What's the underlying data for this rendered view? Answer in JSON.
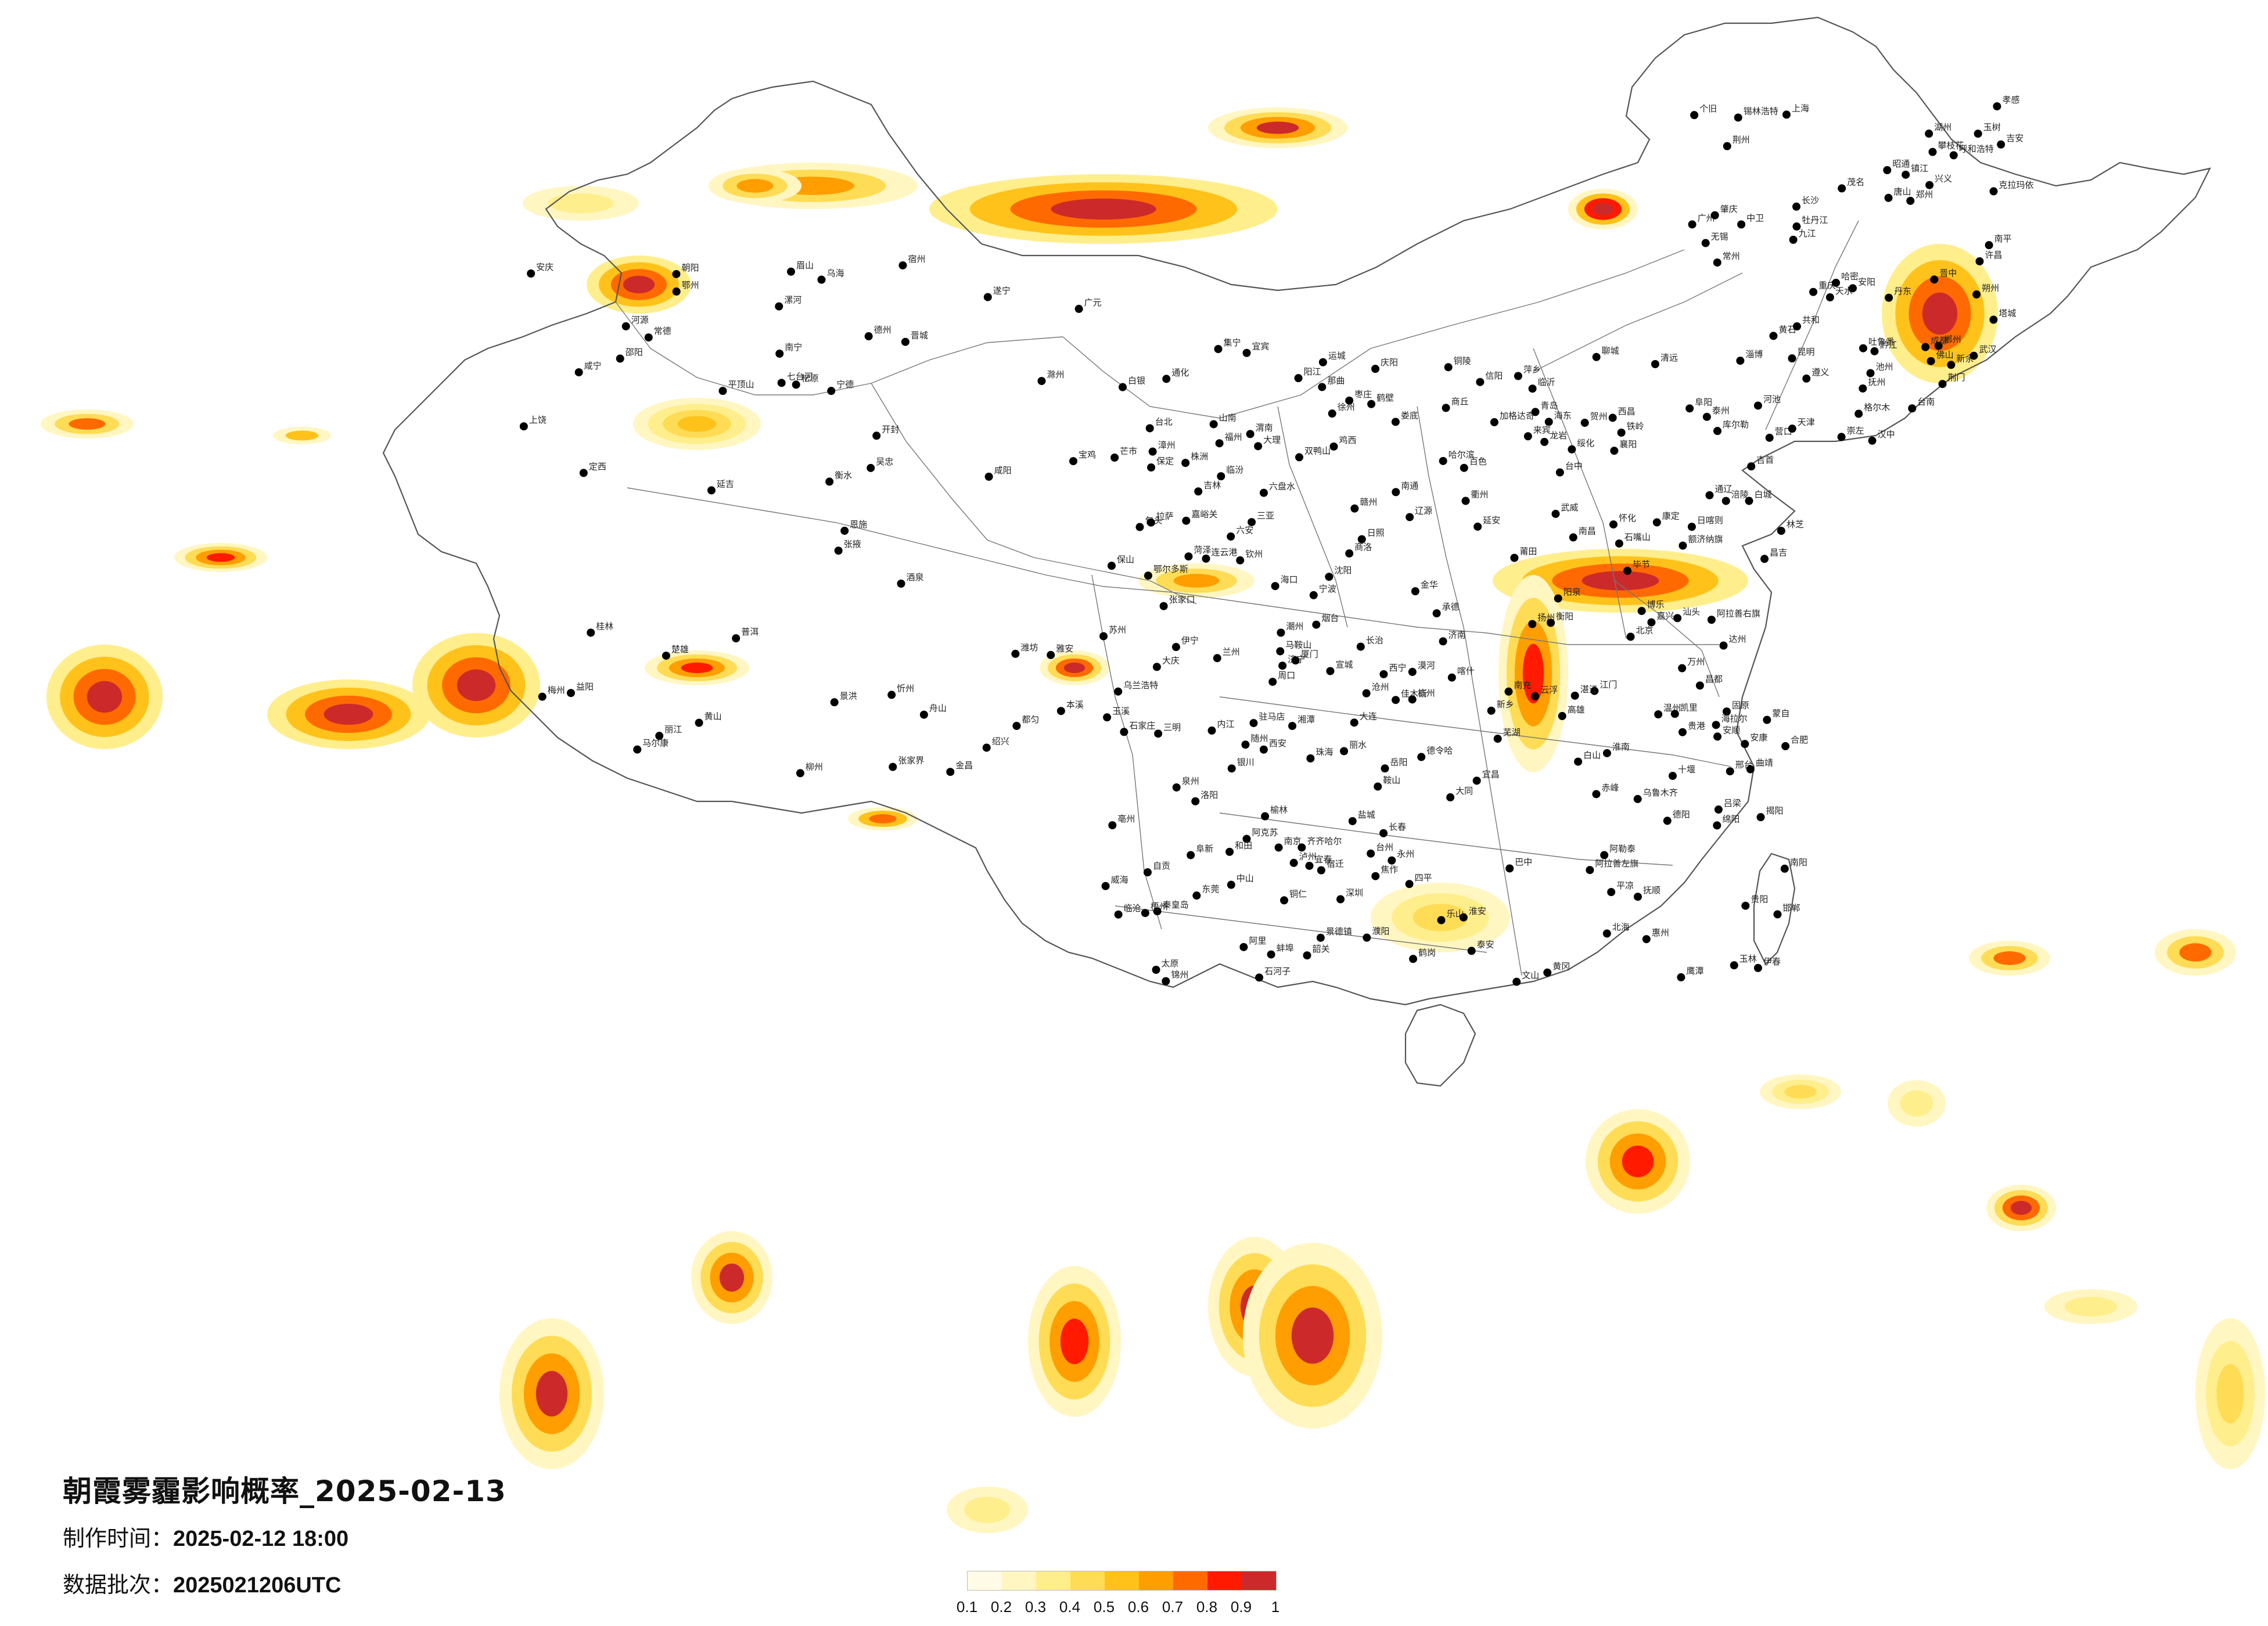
{
  "title": "朝霞雾霾影响概率_2025-02-13",
  "meta": {
    "made_label": "制作时间：",
    "made_value": "2025-02-12 18:00",
    "batch_label": "数据批次：",
    "batch_value": "2025021206UTC"
  },
  "legend": {
    "colors": [
      "#fffbe6",
      "#fff6c2",
      "#ffee8c",
      "#ffdc55",
      "#ffc21a",
      "#ff9e00",
      "#ff6a00",
      "#ff1a00",
      "#cc2a2a"
    ],
    "ticks": [
      "0.1",
      "0.2",
      "0.3",
      "0.4",
      "0.5",
      "0.6",
      "0.7",
      "0.8",
      "0.9",
      "1"
    ]
  },
  "cities": [
    "加格达奇",
    "漠河",
    "海拉尔",
    "齐齐哈尔",
    "大庆",
    "绥化",
    "哈尔滨",
    "伊春",
    "鹤岗",
    "佳木斯",
    "双鸭山",
    "七台河",
    "鸡西",
    "牡丹江",
    "白城",
    "松原",
    "长春",
    "吉林",
    "通化",
    "白山",
    "延吉",
    "四平",
    "辽源",
    "铁岭",
    "抚顺",
    "本溪",
    "丹东",
    "沈阳",
    "鞍山",
    "营口",
    "大连",
    "锦州",
    "阜新",
    "朝阳",
    "赤峰",
    "通辽",
    "锡林浩特",
    "乌兰浩特",
    "呼和浩特",
    "包头",
    "鄂尔多斯",
    "集宁",
    "张家口",
    "承德",
    "北京",
    "天津",
    "唐山",
    "秦皇岛",
    "保定",
    "石家庄",
    "沧州",
    "衡水",
    "邢台",
    "邯郸",
    "大同",
    "朔州",
    "忻州",
    "太原",
    "阳泉",
    "晋中",
    "吕梁",
    "长治",
    "晋城",
    "临汾",
    "运城",
    "乌海",
    "银川",
    "石嘴山",
    "吴忠",
    "中卫",
    "固原",
    "兰州",
    "西宁",
    "白银",
    "天水",
    "定西",
    "庆阳",
    "平凉",
    "延安",
    "榆林",
    "西安",
    "宝鸡",
    "咸阳",
    "渭南",
    "汉中",
    "商洛",
    "安康",
    "郑州",
    "洛阳",
    "开封",
    "新乡",
    "焦作",
    "安阳",
    "鹤壁",
    "濮阳",
    "许昌",
    "漯河",
    "平顶山",
    "南阳",
    "信阳",
    "周口",
    "驻马店",
    "商丘",
    "济南",
    "青岛",
    "烟台",
    "威海",
    "潍坊",
    "淄博",
    "临沂",
    "日照",
    "德州",
    "聊城",
    "菏泽",
    "济宁",
    "泰安",
    "枣庄",
    "连云港",
    "徐州",
    "宿迁",
    "淮安",
    "盐城",
    "南京",
    "扬州",
    "泰州",
    "南通",
    "镇江",
    "常州",
    "无锡",
    "苏州",
    "上海",
    "杭州",
    "嘉兴",
    "湖州",
    "绍兴",
    "宁波",
    "舟山",
    "台州",
    "温州",
    "丽水",
    "金华",
    "衢州",
    "合肥",
    "蚌埠",
    "淮南",
    "阜阳",
    "亳州",
    "宿州",
    "六安",
    "安庆",
    "芜湖",
    "马鞍山",
    "铜陵",
    "黄山",
    "宣城",
    "池州",
    "滁州",
    "南昌",
    "九江",
    "景德镇",
    "上饶",
    "鹰潭",
    "抚州",
    "宜春",
    "新余",
    "萍乡",
    "吉安",
    "赣州",
    "福州",
    "厦门",
    "泉州",
    "漳州",
    "莆田",
    "三明",
    "南平",
    "龙岩",
    "宁德",
    "台北",
    "台中",
    "台南",
    "高雄",
    "武汉",
    "孝感",
    "黄冈",
    "鄂州",
    "黄石",
    "咸宁",
    "荆州",
    "荆门",
    "宜昌",
    "襄阳",
    "十堰",
    "随州",
    "恩施",
    "长沙",
    "株洲",
    "湘潭",
    "岳阳",
    "常德",
    "益阳",
    "娄底",
    "衡阳",
    "邵阳",
    "永州",
    "郴州",
    "怀化",
    "张家界",
    "吉首",
    "广州",
    "深圳",
    "珠海",
    "佛山",
    "东莞",
    "中山",
    "江门",
    "惠州",
    "汕头",
    "潮州",
    "揭阳",
    "梅州",
    "河源",
    "清远",
    "韶关",
    "肇庆",
    "云浮",
    "阳江",
    "茂名",
    "湛江",
    "海口",
    "三亚",
    "南宁",
    "柳州",
    "桂林",
    "梧州",
    "北海",
    "钦州",
    "玉林",
    "百色",
    "河池",
    "贵港",
    "来宾",
    "贺州",
    "崇左",
    "贵阳",
    "遵义",
    "六盘水",
    "安顺",
    "毕节",
    "铜仁",
    "凯里",
    "都匀",
    "兴义",
    "昆明",
    "曲靖",
    "玉溪",
    "昭通",
    "丽江",
    "大理",
    "保山",
    "临沧",
    "普洱",
    "景洪",
    "文山",
    "蒙自",
    "个旧",
    "楚雄",
    "芒市",
    "成都",
    "绵阳",
    "德阳",
    "广元",
    "南充",
    "达州",
    "巴中",
    "遂宁",
    "内江",
    "自贡",
    "宜宾",
    "泸州",
    "乐山",
    "眉山",
    "雅安",
    "西昌",
    "攀枝花",
    "康定",
    "马尔康",
    "重庆",
    "万州",
    "涪陵",
    "黔江",
    "拉萨",
    "日喀则",
    "林芝",
    "山南",
    "那曲",
    "昌都",
    "阿里",
    "乌鲁木齐",
    "克拉玛依",
    "石河子",
    "昌吉",
    "吐鲁番",
    "哈密",
    "库尔勒",
    "阿克苏",
    "喀什",
    "和田",
    "伊宁",
    "塔城",
    "阿勒泰",
    "博乐",
    "格尔木",
    "德令哈",
    "玉树",
    "共和",
    "海东",
    "嘉峪关",
    "酒泉",
    "张掖",
    "金昌",
    "武威",
    "阿拉善左旗",
    "阿拉善右旗",
    "额济纳旗"
  ]
}
